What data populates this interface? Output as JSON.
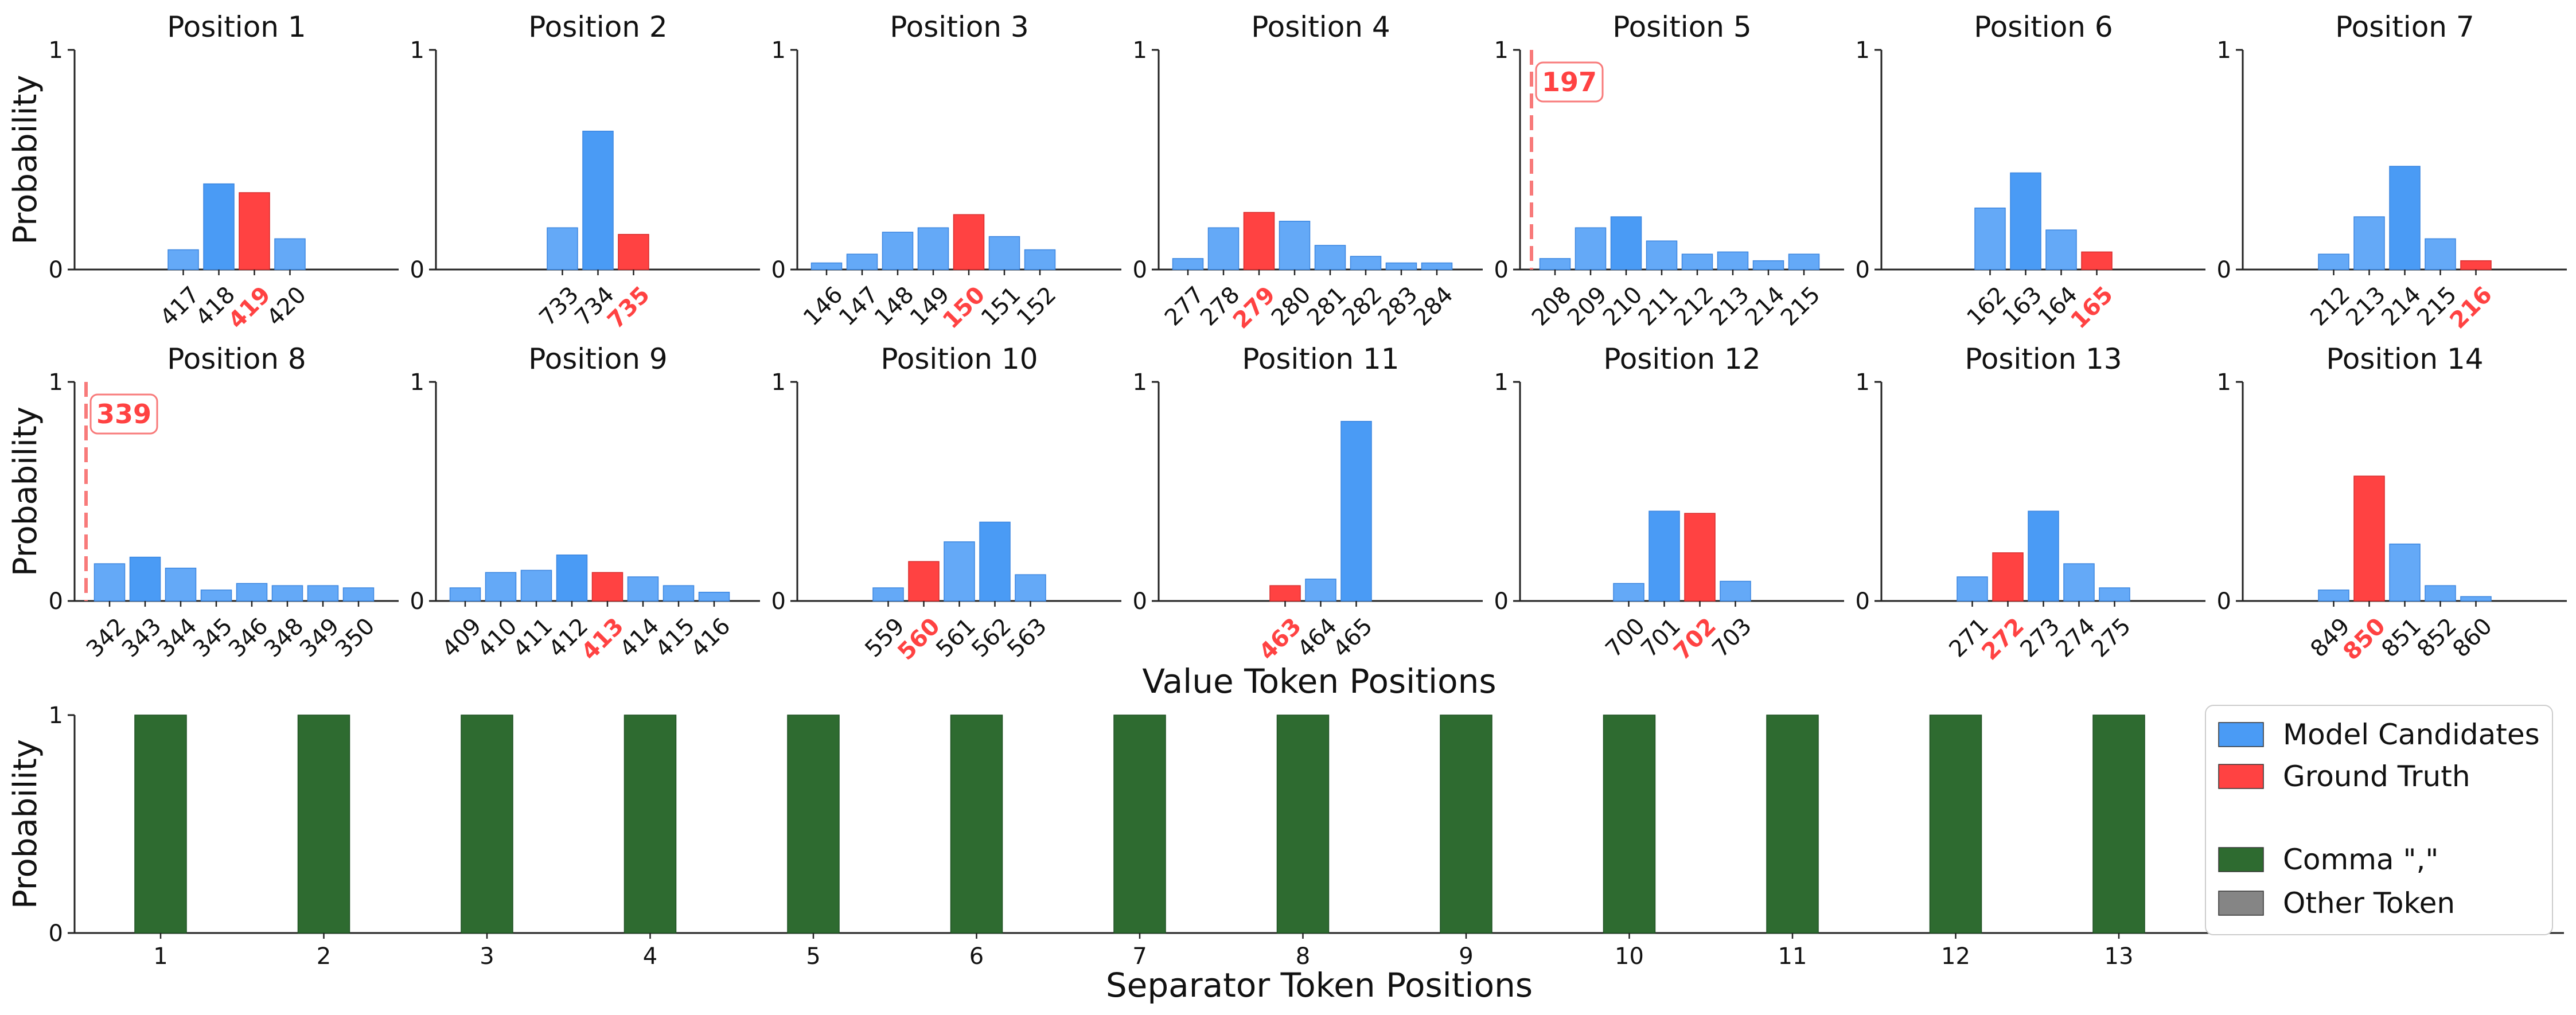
{
  "colors": {
    "candidate": "#64A9F7",
    "candidate_top": "#4A9BF5",
    "ground_truth": "#FF4242",
    "comma": "#2E6B30",
    "other": "#858585",
    "axis": "#222222"
  },
  "labels": {
    "probability": "Probability",
    "value_axis": "Value Token Positions",
    "separator_axis": "Separator Token Positions"
  },
  "chart_data": [
    {
      "title": "Position 1",
      "type": "bar",
      "categories": [
        "417",
        "418",
        "419",
        "420"
      ],
      "values": [
        0.09,
        0.39,
        0.35,
        0.14
      ],
      "truth": "419",
      "ylim": [
        0,
        1
      ],
      "yticks": [
        "0",
        "1"
      ]
    },
    {
      "title": "Position 2",
      "type": "bar",
      "categories": [
        "733",
        "734",
        "735"
      ],
      "values": [
        0.19,
        0.63,
        0.16
      ],
      "truth": "735",
      "ylim": [
        0,
        1
      ],
      "yticks": [
        "0",
        "1"
      ]
    },
    {
      "title": "Position 3",
      "type": "bar",
      "categories": [
        "146",
        "147",
        "148",
        "149",
        "150",
        "151",
        "152"
      ],
      "values": [
        0.03,
        0.07,
        0.17,
        0.19,
        0.25,
        0.15,
        0.09
      ],
      "truth": "150",
      "ylim": [
        0,
        1
      ],
      "yticks": [
        "0",
        "1"
      ]
    },
    {
      "title": "Position 4",
      "type": "bar",
      "categories": [
        "277",
        "278",
        "279",
        "280",
        "281",
        "282",
        "283",
        "284"
      ],
      "values": [
        0.05,
        0.19,
        0.26,
        0.22,
        0.11,
        0.06,
        0.03,
        0.03
      ],
      "truth": "279",
      "ylim": [
        0,
        1
      ],
      "yticks": [
        "0",
        "1"
      ]
    },
    {
      "title": "Position 5",
      "type": "bar",
      "categories": [
        "208",
        "209",
        "210",
        "211",
        "212",
        "213",
        "214",
        "215"
      ],
      "values": [
        0.05,
        0.19,
        0.24,
        0.13,
        0.07,
        0.08,
        0.04,
        0.07
      ],
      "truth": "197",
      "truth_outside": true,
      "ylim": [
        0,
        1
      ],
      "yticks": [
        "0",
        "1"
      ]
    },
    {
      "title": "Position 6",
      "type": "bar",
      "categories": [
        "162",
        "163",
        "164",
        "165"
      ],
      "values": [
        0.28,
        0.44,
        0.18,
        0.08
      ],
      "truth": "165",
      "ylim": [
        0,
        1
      ],
      "yticks": [
        "0",
        "1"
      ]
    },
    {
      "title": "Position 7",
      "type": "bar",
      "categories": [
        "212",
        "213",
        "214",
        "215",
        "216"
      ],
      "values": [
        0.07,
        0.24,
        0.47,
        0.14,
        0.04
      ],
      "truth": "216",
      "ylim": [
        0,
        1
      ],
      "yticks": [
        "0",
        "1"
      ]
    },
    {
      "title": "Position 8",
      "type": "bar",
      "categories": [
        "342",
        "343",
        "344",
        "345",
        "346",
        "348",
        "349",
        "350"
      ],
      "values": [
        0.17,
        0.2,
        0.15,
        0.05,
        0.08,
        0.07,
        0.07,
        0.06
      ],
      "truth": "339",
      "truth_outside": true,
      "ylim": [
        0,
        1
      ],
      "yticks": [
        "0",
        "1"
      ]
    },
    {
      "title": "Position 9",
      "type": "bar",
      "categories": [
        "409",
        "410",
        "411",
        "412",
        "413",
        "414",
        "415",
        "416"
      ],
      "values": [
        0.06,
        0.13,
        0.14,
        0.21,
        0.13,
        0.11,
        0.07,
        0.04
      ],
      "truth": "413",
      "ylim": [
        0,
        1
      ],
      "yticks": [
        "0",
        "1"
      ]
    },
    {
      "title": "Position 10",
      "type": "bar",
      "categories": [
        "559",
        "560",
        "561",
        "562",
        "563"
      ],
      "values": [
        0.06,
        0.18,
        0.27,
        0.36,
        0.12
      ],
      "truth": "560",
      "ylim": [
        0,
        1
      ],
      "yticks": [
        "0",
        "1"
      ]
    },
    {
      "title": "Position 11",
      "type": "bar",
      "categories": [
        "463",
        "464",
        "465"
      ],
      "values": [
        0.07,
        0.1,
        0.82
      ],
      "truth": "463",
      "ylim": [
        0,
        1
      ],
      "yticks": [
        "0",
        "1"
      ]
    },
    {
      "title": "Position 12",
      "type": "bar",
      "categories": [
        "700",
        "701",
        "702",
        "703"
      ],
      "values": [
        0.08,
        0.41,
        0.4,
        0.09
      ],
      "truth": "702",
      "ylim": [
        0,
        1
      ],
      "yticks": [
        "0",
        "1"
      ]
    },
    {
      "title": "Position 13",
      "type": "bar",
      "categories": [
        "271",
        "272",
        "273",
        "274",
        "275"
      ],
      "values": [
        0.11,
        0.22,
        0.41,
        0.17,
        0.06
      ],
      "truth": "272",
      "ylim": [
        0,
        1
      ],
      "yticks": [
        "0",
        "1"
      ]
    },
    {
      "title": "Position 14",
      "type": "bar",
      "categories": [
        "849",
        "850",
        "851",
        "852",
        "860"
      ],
      "values": [
        0.05,
        0.57,
        0.26,
        0.07,
        0.02
      ],
      "truth": "850",
      "ylim": [
        0,
        1
      ],
      "yticks": [
        "0",
        "1"
      ]
    },
    {
      "title": "",
      "type": "bar",
      "categories": [
        "1",
        "2",
        "3",
        "4",
        "5",
        "6",
        "7",
        "8",
        "9",
        "10",
        "11",
        "12",
        "13"
      ],
      "series": [
        {
          "name": "Comma \",\"",
          "values": [
            1,
            1,
            1,
            1,
            1,
            1,
            1,
            1,
            1,
            1,
            1,
            1,
            1
          ]
        },
        {
          "name": "Other Token",
          "values": [
            0,
            0,
            0,
            0,
            0,
            0,
            0,
            0,
            0,
            0,
            0,
            0,
            0
          ]
        }
      ],
      "xlabel": "Separator Token Positions",
      "ylabel": "Probability",
      "ylim": [
        0,
        1
      ],
      "yticks": [
        "0",
        "1"
      ]
    }
  ],
  "legend": {
    "location": "right",
    "items": [
      {
        "label": "Model Candidates",
        "color": "#4A9BF5"
      },
      {
        "label": "Ground Truth",
        "color": "#FF4242"
      },
      {
        "label": "Comma \",\"",
        "color": "#2E6B30"
      },
      {
        "label": "Other Token",
        "color": "#858585"
      }
    ]
  }
}
